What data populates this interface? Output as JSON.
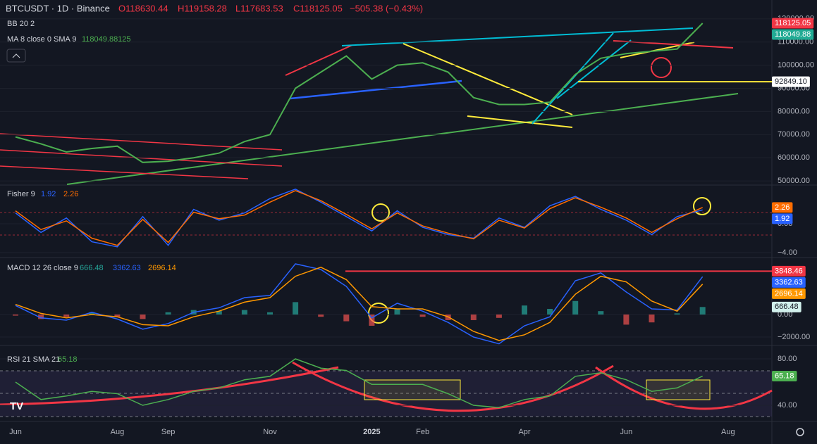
{
  "header": {
    "symbol": "BTCUSDT · 1D · Binance",
    "open": "O118630.44",
    "high": "H119158.28",
    "low": "L117683.53",
    "close": "C118125.05",
    "change": "−505.38 (−0.43%)",
    "bb": "BB 20 2",
    "ma": "MA 8 close 0 SMA 9",
    "ma_value": "118049.88125"
  },
  "chart_data": [
    {
      "type": "line",
      "series": [
        {
          "name": "BTCUSDT",
          "color": "#4caf50",
          "values": [
            69000,
            66000,
            62500,
            64000,
            65000,
            58000,
            58500,
            60000,
            62000,
            67000,
            70000,
            90000,
            97000,
            104000,
            94000,
            100000,
            101000,
            97000,
            86000,
            83000,
            83000,
            84000,
            96000,
            103000,
            105000,
            106000,
            107000,
            118125,
            null
          ]
        }
      ],
      "ylim": [
        48500,
        123600
      ],
      "yticks": [
        {
          "value": 50000,
          "label": "50000.00"
        },
        {
          "value": 60000,
          "label": "60000.00"
        },
        {
          "value": 70000,
          "label": "70000.00"
        },
        {
          "value": 80000,
          "label": "80000.00"
        },
        {
          "value": 90000,
          "label": "90000.00"
        },
        {
          "value": 100000,
          "label": "100000.00"
        },
        {
          "value": 110000,
          "label": "110000.00"
        },
        {
          "value": 120000,
          "label": "120000.00"
        }
      ],
      "grid": true,
      "price_tags": [
        {
          "value": 118125.05,
          "color": "#f23645"
        },
        {
          "value": 118049.88,
          "color": "#22ab94"
        },
        {
          "value": 92849.1,
          "label": "92849.10",
          "color": "#ffffff",
          "line": true
        }
      ]
    },
    {
      "type": "line",
      "title": "Fisher 9",
      "series": [
        {
          "name": "Fisher",
          "color": "#2962ff",
          "values": [
            1.5,
            -1.2,
            0.8,
            -2.5,
            -3.2,
            1.0,
            -3.0,
            2.0,
            0.5,
            1.5,
            3.5,
            4.8,
            3.0,
            1.0,
            -1.0,
            1.8,
            -0.5,
            -1.5,
            -2.0,
            0.8,
            -0.5,
            2.5,
            3.8,
            2.0,
            0.5,
            -1.5,
            1.0,
            1.92,
            null
          ]
        },
        {
          "name": "Trigger",
          "color": "#ff6d00",
          "values": [
            1.8,
            -0.8,
            0.4,
            -2.0,
            -3.0,
            0.6,
            -2.6,
            1.6,
            0.7,
            1.2,
            3.0,
            4.6,
            3.2,
            1.3,
            -0.7,
            1.5,
            -0.3,
            -1.3,
            -2.1,
            0.5,
            -0.6,
            2.1,
            3.6,
            2.3,
            0.8,
            -1.2,
            0.7,
            2.26,
            null
          ]
        }
      ],
      "ylim": [
        -4.59,
        5.37
      ],
      "yticks": [
        {
          "value": -4,
          "label": "−4.00"
        },
        {
          "value": 0,
          "label": "0.00"
        }
      ],
      "grid": true
    },
    {
      "type": "line",
      "title": "MACD 12 26 close 9",
      "series": [
        {
          "name": "Histogram",
          "type": "bar",
          "color": "#26a69a",
          "negative_color": "#ef5350",
          "values": [
            -100,
            -400,
            -200,
            200,
            -200,
            -400,
            200,
            400,
            300,
            400,
            200,
            1100,
            -200,
            -600,
            -1000,
            500,
            -200,
            -500,
            -500,
            -300,
            800,
            500,
            1200,
            300,
            -900,
            -700,
            100,
            666.48,
            null
          ]
        },
        {
          "name": "MACD",
          "color": "#2962ff",
          "values": [
            800,
            -300,
            -500,
            200,
            -400,
            -1300,
            -800,
            200,
            600,
            1500,
            1700,
            4500,
            4000,
            2500,
            -300,
            1000,
            300,
            -700,
            -2000,
            -2600,
            -1000,
            -200,
            3000,
            3700,
            2000,
            500,
            400,
            3362.63,
            null
          ]
        },
        {
          "name": "Signal",
          "color": "#ff9800",
          "values": [
            900,
            100,
            -300,
            0,
            -200,
            -900,
            -1000,
            -200,
            300,
            1100,
            1500,
            3400,
            4200,
            3100,
            700,
            500,
            500,
            -200,
            -1500,
            -2300,
            -1800,
            -700,
            1800,
            3400,
            2900,
            1200,
            300,
            2696.14,
            null
          ]
        }
      ],
      "hline": {
        "value": 3848.46,
        "color": "#f23645"
      },
      "ylim": [
        -2690,
        5000
      ],
      "yticks": [
        {
          "value": -2000,
          "label": "−2000.00"
        },
        {
          "value": 0,
          "label": "0.00"
        }
      ],
      "grid": true
    },
    {
      "type": "line",
      "title": "RSI 21 SMA 21",
      "categories": [
        "Jun",
        null,
        null,
        null,
        "Aug",
        null,
        "Sep",
        null,
        null,
        null,
        "Nov",
        null,
        null,
        null,
        "2025",
        null,
        "Feb",
        null,
        null,
        null,
        "Apr",
        null,
        null,
        null,
        "Jun",
        null,
        null,
        null,
        "Aug"
      ],
      "series": [
        {
          "name": "RSI",
          "color": "#4caf50",
          "values": [
            60,
            45,
            48,
            52,
            50,
            40,
            45,
            52,
            55,
            62,
            65,
            80,
            72,
            70,
            58,
            58,
            58,
            50,
            40,
            38,
            45,
            48,
            65,
            68,
            62,
            52,
            55,
            65.18,
            null
          ]
        }
      ],
      "ylim": [
        26.7,
        90.9
      ],
      "yticks": [
        {
          "value": 40,
          "label": "40.00"
        },
        {
          "value": 80,
          "label": "80.00"
        }
      ],
      "grid": true
    }
  ]
}
